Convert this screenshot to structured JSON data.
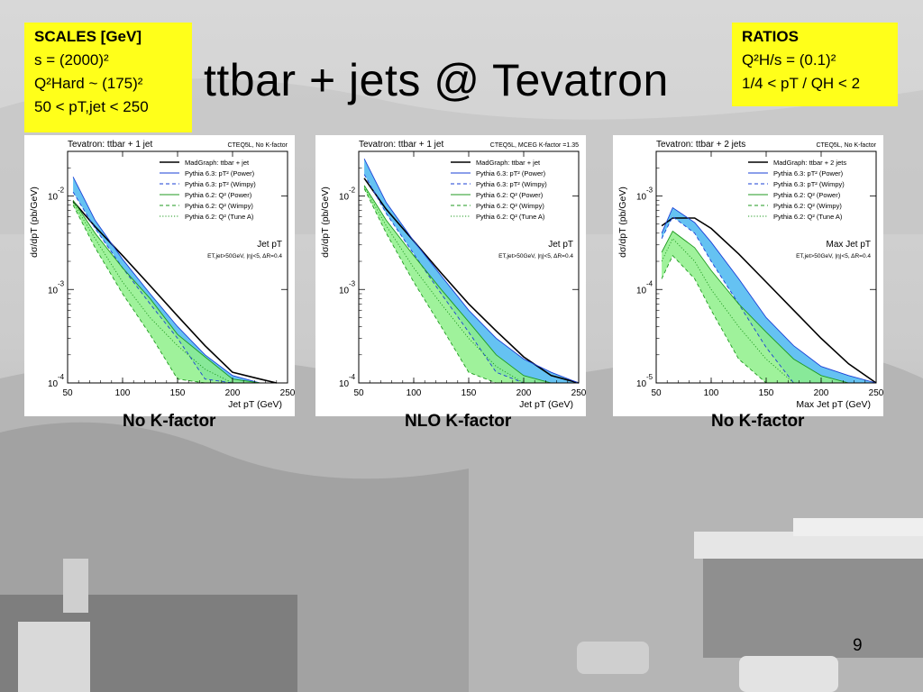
{
  "slide": {
    "title": "ttbar + jets @ Tevatron",
    "page_number": "9",
    "scales_box": {
      "header": "SCALES [GeV]",
      "line1": "s = (2000)²",
      "line2": "Q²Hard ~ (175)²",
      "line3": "50 < pT,jet < 250"
    },
    "ratios_box": {
      "header": "RATIOS",
      "line1": "Q²H/s = (0.1)²",
      "line2": "1/4 < pT / QH < 2"
    },
    "captions": [
      "No K-factor",
      "NLO K-factor",
      "No K-factor"
    ]
  },
  "colors": {
    "yellow_box": "#ffff1a",
    "pythia63_band": "#4ab7f0",
    "pythia62_band": "#8ef08a",
    "madgraph_line": "#000000",
    "pythia63_line": "#1a3fd6",
    "pythia62_line": "#1f9a1f"
  },
  "chart_data": [
    {
      "type": "line",
      "title": "Tevatron: ttbar + 1 jet",
      "subtitle": "CTEQ5L, No K-factor",
      "xlabel": "Jet pT (GeV)",
      "ylabel": "dσ/dpT (pb/GeV)",
      "annotation": "Jet pT",
      "cuts": "ET,jet>50GeV, |η|<5, ΔR=0.4",
      "yscale": "log",
      "xlim": [
        50,
        250
      ],
      "ylim": [
        0.0001,
        0.03
      ],
      "xticks": [
        "50",
        "100",
        "150",
        "200",
        "250"
      ],
      "yticks": [
        {
          "value": 0.01,
          "label": "10",
          "exp": "-2"
        },
        {
          "value": 0.001,
          "label": "10",
          "exp": "-3"
        },
        {
          "value": 0.0001,
          "label": "10",
          "exp": "-4"
        }
      ],
      "legend": [
        {
          "label": "MadGraph: ttbar + jet",
          "style": "solid",
          "color": "#000000"
        },
        {
          "label": "Pythia 6.3: pT² (Power)",
          "style": "solid",
          "color": "#1a3fd6"
        },
        {
          "label": "Pythia 6.3: pT² (Wimpy)",
          "style": "dashed",
          "color": "#1a3fd6"
        },
        {
          "label": "Pythia 6.2: Q² (Power)",
          "style": "solid",
          "color": "#1f9a1f"
        },
        {
          "label": "Pythia 6.2: Q² (Wimpy)",
          "style": "dashed",
          "color": "#1f9a1f"
        },
        {
          "label": "Pythia 6.2: Q² (Tune A)",
          "style": "dotted",
          "color": "#1f9a1f"
        }
      ],
      "x": [
        55,
        75,
        100,
        125,
        150,
        175,
        200,
        225,
        240
      ],
      "series": [
        {
          "name": "MadGraph: ttbar + jet",
          "values": [
            0.0088,
            0.0047,
            0.0023,
            0.0011,
            0.00052,
            0.00025,
            0.00013,
            0.00011,
            0.0001
          ]
        },
        {
          "name": "Pythia 6.3: pT² (Power)",
          "values": [
            0.016,
            0.0055,
            0.0021,
            0.0009,
            0.0004,
            0.0002,
            0.00012,
            0.0001,
            0.0001
          ]
        },
        {
          "name": "Pythia 6.3: pT² (Wimpy)",
          "values": [
            0.011,
            0.0045,
            0.0017,
            0.0007,
            0.0003,
            0.00011,
            0.0001,
            0.0001,
            0.0001
          ]
        },
        {
          "name": "Pythia 6.2: Q² (Power)",
          "values": [
            0.009,
            0.004,
            0.0017,
            0.0008,
            0.00033,
            0.00019,
            0.00011,
            0.0001,
            0.0001
          ]
        },
        {
          "name": "Pythia 6.2: Q² (Wimpy)",
          "values": [
            0.008,
            0.0028,
            0.0009,
            0.00033,
            0.00011,
            0.0001,
            0.0001,
            0.0001,
            0.0001
          ]
        },
        {
          "name": "Pythia 6.2: Q² (Tune A)",
          "values": [
            0.0085,
            0.0035,
            0.0012,
            0.0005,
            0.00025,
            0.00014,
            0.0001,
            0.0001,
            0.0001
          ]
        }
      ]
    },
    {
      "type": "line",
      "title": "Tevatron: ttbar + 1 jet",
      "subtitle": "CTEQ5L, MCEG K-factor =1.35",
      "xlabel": "Jet pT (GeV)",
      "ylabel": "dσ/dpT (pb/GeV)",
      "annotation": "Jet pT",
      "cuts": "ET,jet>50GeV, |η|<5, ΔR=0.4",
      "yscale": "log",
      "xlim": [
        50,
        250
      ],
      "ylim": [
        0.0001,
        0.03
      ],
      "xticks": [
        "50",
        "100",
        "150",
        "200",
        "250"
      ],
      "yticks": [
        {
          "value": 0.01,
          "label": "10",
          "exp": "-2"
        },
        {
          "value": 0.001,
          "label": "10",
          "exp": "-3"
        },
        {
          "value": 0.0001,
          "label": "10",
          "exp": "-4"
        }
      ],
      "legend": [
        {
          "label": "MadGraph: ttbar + jet",
          "style": "solid",
          "color": "#000000"
        },
        {
          "label": "Pythia 6.3: pT² (Power)",
          "style": "solid",
          "color": "#1a3fd6"
        },
        {
          "label": "Pythia 6.3: pT² (Wimpy)",
          "style": "dashed",
          "color": "#1a3fd6"
        },
        {
          "label": "Pythia 6.2: Q² (Power)",
          "style": "solid",
          "color": "#1f9a1f"
        },
        {
          "label": "Pythia 6.2: Q² (Wimpy)",
          "style": "dashed",
          "color": "#1f9a1f"
        },
        {
          "label": "Pythia 6.2: Q² (Tune A)",
          "style": "dotted",
          "color": "#1f9a1f"
        }
      ],
      "x": [
        55,
        75,
        100,
        125,
        150,
        175,
        200,
        225,
        250
      ],
      "series": [
        {
          "name": "MadGraph: ttbar + jet",
          "values": [
            0.0155,
            0.0072,
            0.0033,
            0.0015,
            0.0007,
            0.00036,
            0.00019,
            0.00012,
            0.0001
          ]
        },
        {
          "name": "Pythia 6.3: pT² (Power)",
          "values": [
            0.025,
            0.0085,
            0.0033,
            0.0014,
            0.0006,
            0.0003,
            0.00018,
            0.00013,
            0.0001
          ]
        },
        {
          "name": "Pythia 6.3: pT² (Wimpy)",
          "values": [
            0.017,
            0.0065,
            0.0024,
            0.0009,
            0.00035,
            0.00013,
            0.0001,
            0.0001,
            0.0001
          ]
        },
        {
          "name": "Pythia 6.2: Q² (Power)",
          "values": [
            0.013,
            0.0055,
            0.0023,
            0.001,
            0.00045,
            0.0002,
            0.00012,
            0.0001,
            0.0001
          ]
        },
        {
          "name": "Pythia 6.2: Q² (Wimpy)",
          "values": [
            0.012,
            0.004,
            0.0012,
            0.0004,
            0.00013,
            0.0001,
            0.0001,
            0.0001,
            0.0001
          ]
        },
        {
          "name": "Pythia 6.2: Q² (Tune A)",
          "values": [
            0.0125,
            0.0048,
            0.0017,
            0.0007,
            0.0003,
            0.00015,
            0.0001,
            0.0001,
            0.0001
          ]
        }
      ]
    },
    {
      "type": "line",
      "title": "Tevatron: ttbar + 2 jets",
      "subtitle": "CTEQ5L, No K-factor",
      "xlabel": "Max Jet pT (GeV)",
      "ylabel": "dσ/dpT (pb/GeV)",
      "annotation": "Max Jet pT",
      "cuts": "ET,jet>50GeV, |η|<5, ΔR=0.4",
      "yscale": "log",
      "xlim": [
        50,
        250
      ],
      "ylim": [
        1e-05,
        0.003
      ],
      "xticks": [
        "50",
        "100",
        "150",
        "200",
        "250"
      ],
      "yticks": [
        {
          "value": 0.001,
          "label": "10",
          "exp": "-3"
        },
        {
          "value": 0.0001,
          "label": "10",
          "exp": "-4"
        },
        {
          "value": 1e-05,
          "label": "10",
          "exp": "-5"
        }
      ],
      "legend": [
        {
          "label": "MadGraph: ttbar + 2 jets",
          "style": "solid",
          "color": "#000000"
        },
        {
          "label": "Pythia 6.3: pT² (Power)",
          "style": "solid",
          "color": "#1a3fd6"
        },
        {
          "label": "Pythia 6.3: pT² (Wimpy)",
          "style": "dashed",
          "color": "#1a3fd6"
        },
        {
          "label": "Pythia 6.2: Q² (Power)",
          "style": "solid",
          "color": "#1f9a1f"
        },
        {
          "label": "Pythia 6.2: Q² (Wimpy)",
          "style": "dashed",
          "color": "#1f9a1f"
        },
        {
          "label": "Pythia 6.2: Q² (Tune A)",
          "style": "dotted",
          "color": "#1f9a1f"
        }
      ],
      "x": [
        55,
        65,
        85,
        100,
        125,
        150,
        175,
        200,
        225,
        250
      ],
      "series": [
        {
          "name": "MadGraph: ttbar + 2 jets",
          "values": [
            0.00048,
            0.00058,
            0.00058,
            0.00045,
            0.00024,
            0.00012,
            6e-05,
            3e-05,
            1.6e-05,
            1e-05
          ]
        },
        {
          "name": "Pythia 6.3: pT² (Power)",
          "values": [
            0.0004,
            0.00075,
            0.00052,
            0.00032,
            0.00013,
            5e-05,
            2.5e-05,
            1.5e-05,
            1.2e-05,
            1e-05
          ]
        },
        {
          "name": "Pythia 6.3: pT² (Wimpy)",
          "values": [
            0.00035,
            0.0006,
            0.0004,
            0.0002,
            7e-05,
            2.4e-05,
            1e-05,
            1e-05,
            1e-05,
            1e-05
          ]
        },
        {
          "name": "Pythia 6.2: Q² (Power)",
          "values": [
            0.00025,
            0.00042,
            0.00028,
            0.00016,
            7e-05,
            3.5e-05,
            1.8e-05,
            1.2e-05,
            1e-05,
            1e-05
          ]
        },
        {
          "name": "Pythia 6.2: Q² (Wimpy)",
          "values": [
            0.00013,
            0.00023,
            0.00013,
            6e-05,
            1.8e-05,
            1e-05,
            1e-05,
            1e-05,
            1e-05,
            1e-05
          ]
        },
        {
          "name": "Pythia 6.2: Q² (Tune A)",
          "values": [
            0.0002,
            0.00035,
            0.0002,
            0.0001,
            4e-05,
            1.8e-05,
            1e-05,
            1e-05,
            1e-05,
            1e-05
          ]
        }
      ]
    }
  ]
}
